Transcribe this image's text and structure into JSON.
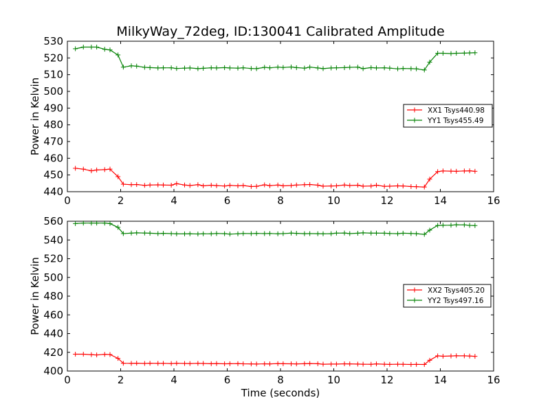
{
  "chart_data": [
    {
      "type": "line",
      "title": "MilkyWay_72deg, ID:130041 Calibrated Amplitude",
      "xlabel": "",
      "ylabel": "Power in Kelvin",
      "xlim": [
        0,
        16
      ],
      "ylim": [
        440,
        530
      ],
      "xticks": [
        "0",
        "2",
        "4",
        "6",
        "8",
        "10",
        "12",
        "14",
        "16"
      ],
      "yticks": [
        "440",
        "450",
        "460",
        "470",
        "480",
        "490",
        "500",
        "510",
        "520",
        "530"
      ],
      "legend_position": "center-right",
      "x": [
        0.3,
        0.6,
        0.9,
        1.1,
        1.4,
        1.6,
        1.9,
        2.1,
        2.4,
        2.6,
        2.9,
        3.1,
        3.4,
        3.6,
        3.9,
        4.1,
        4.4,
        4.6,
        4.9,
        5.1,
        5.4,
        5.6,
        5.9,
        6.1,
        6.4,
        6.6,
        6.9,
        7.1,
        7.4,
        7.6,
        7.9,
        8.1,
        8.4,
        8.6,
        8.9,
        9.1,
        9.4,
        9.6,
        9.9,
        10.1,
        10.4,
        10.6,
        10.9,
        11.1,
        11.4,
        11.6,
        11.9,
        12.1,
        12.4,
        12.6,
        12.9,
        13.1,
        13.4,
        13.6,
        13.9,
        14.1,
        14.4,
        14.6,
        14.9,
        15.1,
        15.3
      ],
      "series": [
        {
          "name": "XX1 Tsys440.98",
          "color": "#ff0000",
          "values": [
            454,
            453.5,
            452.5,
            453,
            453.2,
            453.5,
            449,
            444.5,
            444.2,
            444.3,
            443.8,
            444,
            444.1,
            444,
            443.9,
            444.8,
            444,
            443.7,
            444.2,
            443.5,
            443.9,
            443.6,
            443.4,
            443.8,
            443.5,
            443.7,
            443.1,
            443.2,
            444.1,
            443.6,
            444,
            443.5,
            443.7,
            444,
            444.2,
            444.3,
            443.9,
            443.3,
            443.4,
            443.5,
            444,
            443.7,
            443.9,
            443.3,
            443.4,
            443.9,
            443.2,
            443.3,
            443.5,
            443.4,
            443.1,
            443,
            442.8,
            447.5,
            452,
            452.4,
            452.3,
            452.2,
            452.4,
            452.5,
            452.2
          ]
        },
        {
          "name": "YY1 Tsys455.49",
          "color": "#008000",
          "values": [
            525.5,
            526.5,
            526.5,
            526.5,
            525.2,
            524.8,
            521.8,
            514.5,
            515.3,
            515.1,
            514.4,
            514.2,
            514,
            514.1,
            514.1,
            513.7,
            513.9,
            514,
            513.6,
            513.8,
            514.1,
            514,
            514.2,
            514,
            513.9,
            514.1,
            513.7,
            513.6,
            514.4,
            514.1,
            514.5,
            514.3,
            514.6,
            514.2,
            513.9,
            514.5,
            514,
            513.6,
            514,
            514.1,
            514.2,
            514.4,
            514.5,
            513.6,
            514.2,
            514,
            514.1,
            513.9,
            513.5,
            513.7,
            513.6,
            513.5,
            512.8,
            517.5,
            522.8,
            522.8,
            522.6,
            522.8,
            522.9,
            523,
            523.1
          ]
        }
      ]
    },
    {
      "type": "line",
      "title": "",
      "xlabel": "Time (seconds)",
      "ylabel": "Power in Kelvin",
      "xlim": [
        0,
        16
      ],
      "ylim": [
        400,
        560
      ],
      "xticks": [
        "0",
        "2",
        "4",
        "6",
        "8",
        "10",
        "12",
        "14",
        "16"
      ],
      "yticks": [
        "400",
        "420",
        "440",
        "460",
        "480",
        "500",
        "520",
        "540",
        "560"
      ],
      "legend_position": "center-right",
      "x": [
        0.3,
        0.6,
        0.9,
        1.1,
        1.4,
        1.6,
        1.9,
        2.1,
        2.4,
        2.6,
        2.9,
        3.1,
        3.4,
        3.6,
        3.9,
        4.1,
        4.4,
        4.6,
        4.9,
        5.1,
        5.4,
        5.6,
        5.9,
        6.1,
        6.4,
        6.6,
        6.9,
        7.1,
        7.4,
        7.6,
        7.9,
        8.1,
        8.4,
        8.6,
        8.9,
        9.1,
        9.4,
        9.6,
        9.9,
        10.1,
        10.4,
        10.6,
        10.9,
        11.1,
        11.4,
        11.6,
        11.9,
        12.1,
        12.4,
        12.6,
        12.9,
        13.1,
        13.4,
        13.6,
        13.9,
        14.1,
        14.4,
        14.6,
        14.9,
        15.1,
        15.3
      ],
      "series": [
        {
          "name": "XX2 Tsys405.20",
          "color": "#ff0000",
          "values": [
            418,
            418,
            417.5,
            417.2,
            417.8,
            417.6,
            413.5,
            408.3,
            408.2,
            408.4,
            408.1,
            408.3,
            408.2,
            408.2,
            408,
            408.3,
            408.1,
            408,
            408.2,
            408.1,
            407.8,
            408,
            407.7,
            407.8,
            407.9,
            407.7,
            407.6,
            407.5,
            407.7,
            407.6,
            407.9,
            407.8,
            407.7,
            407.6,
            407.8,
            408,
            407.8,
            407.3,
            407.4,
            407.4,
            407.7,
            407.6,
            407.4,
            407.3,
            407.2,
            407.6,
            407.3,
            407.1,
            407.3,
            407.2,
            407,
            407.1,
            407,
            411.5,
            416.2,
            415.8,
            416.1,
            416.3,
            416.2,
            416,
            415.7
          ]
        },
        {
          "name": "YY2 Tsys497.16",
          "color": "#008000",
          "values": [
            557.5,
            558,
            558,
            558,
            558,
            557.5,
            553.5,
            546.8,
            547.3,
            547.6,
            547.4,
            547.2,
            546.8,
            547.1,
            546.8,
            546.5,
            546.5,
            546.6,
            546.4,
            546.6,
            546.6,
            546.9,
            546.7,
            546.3,
            546.6,
            546.9,
            546.8,
            547,
            546.8,
            546.9,
            546.6,
            546.8,
            547.3,
            547.1,
            546.7,
            546.8,
            546.7,
            546.6,
            546.7,
            547.3,
            547.4,
            546.8,
            547.2,
            547.6,
            547.3,
            547.3,
            547.2,
            546.9,
            546.7,
            547.2,
            546.9,
            546.7,
            546,
            550.5,
            555.5,
            555.7,
            555.8,
            556.2,
            556.1,
            555.6,
            555.4
          ]
        }
      ]
    }
  ]
}
